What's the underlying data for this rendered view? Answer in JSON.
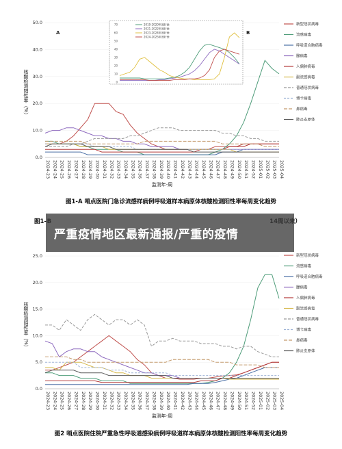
{
  "banner": {
    "text": "严重疫情地区最新通报/严重的疫情"
  },
  "legend": [
    "新型冠状病毒",
    "流感病毒",
    "呼吸道合胞病毒",
    "腺病毒",
    "人偏肺病毒",
    "副流感病毒",
    "普通冠状病毒",
    "博卡病毒",
    "鼻病毒",
    "肺炎支原体"
  ],
  "colors": [
    "#c0504d",
    "#4f9d7a",
    "#4a6fa5",
    "#8e6bbf",
    "#b33b3b",
    "#d6b84a",
    "#999999",
    "#9fb4d6",
    "#c49a6c",
    "#5a5a5a"
  ],
  "chart_data": [
    {
      "type": "line",
      "caption": "图1-A 哨点医院门急诊流感样病例呼吸道样本病原体核酸检测阳性率每周变化趋势",
      "panel_labels": [
        "A",
        "B"
      ],
      "ylabel": "核酸检测阳性率（%）",
      "xlabel": "监测年-周",
      "ylim": [
        0,
        50
      ],
      "yticks": [
        0,
        10,
        20,
        30,
        40,
        50
      ],
      "x": [
        "2024-23",
        "2024-24",
        "2024-25",
        "2024-26",
        "2024-27",
        "2024-28",
        "2024-29",
        "2024-30",
        "2024-31",
        "2024-32",
        "2024-33",
        "2024-34",
        "2024-35",
        "2024-36",
        "2024-37",
        "2024-38",
        "2024-39",
        "2024-40",
        "2024-41",
        "2024-42",
        "2024-43",
        "2024-44",
        "2024-45",
        "2024-46",
        "2024-47",
        "2024-48",
        "2024-49",
        "2024-50",
        "2024-51",
        "2024-52",
        "2025-01",
        "2025-02",
        "2025-03",
        "2025-04"
      ],
      "series": [
        {
          "name": "新型冠状病毒",
          "values": [
            5,
            5,
            5,
            6,
            8,
            11,
            14,
            20,
            20,
            20,
            17,
            16,
            12,
            9,
            7,
            5,
            4,
            3,
            3,
            3,
            3,
            3,
            3,
            3,
            4,
            4,
            4,
            4,
            5,
            5,
            5,
            5,
            5,
            5
          ]
        },
        {
          "name": "流感病毒",
          "values": [
            6,
            6,
            5,
            5,
            5,
            4,
            4,
            3,
            3,
            3,
            3,
            2,
            2,
            2,
            1,
            1,
            1,
            1,
            1,
            1,
            1,
            1,
            1,
            1,
            2,
            3,
            5,
            8,
            13,
            20,
            28,
            36,
            33,
            31
          ]
        },
        {
          "name": "呼吸道合胞病毒",
          "values": [
            2,
            2,
            2,
            2,
            2,
            2,
            1,
            1,
            1,
            1,
            1,
            1,
            1,
            1,
            1,
            1,
            1,
            1,
            1,
            1,
            1,
            1,
            1,
            1,
            1,
            2,
            2,
            2,
            3,
            3,
            3,
            3,
            3,
            3
          ]
        },
        {
          "name": "腺病毒",
          "values": [
            9,
            10,
            10,
            11,
            11,
            10,
            9,
            8,
            8,
            7,
            7,
            6,
            6,
            5,
            5,
            4,
            4,
            4,
            4,
            3,
            3,
            3,
            3,
            3,
            3,
            3,
            3,
            3,
            3,
            3,
            3,
            3,
            3,
            3
          ]
        },
        {
          "name": "人偏肺病毒",
          "values": [
            3,
            3,
            3,
            3,
            3,
            3,
            3,
            3,
            2,
            2,
            2,
            2,
            2,
            2,
            2,
            2,
            2,
            2,
            2,
            2,
            2,
            2,
            3,
            3,
            3,
            3,
            4,
            4,
            4,
            5,
            5,
            5,
            5,
            5
          ]
        },
        {
          "name": "副流感病毒",
          "values": [
            5,
            5,
            5,
            5,
            5,
            4,
            4,
            4,
            4,
            3,
            3,
            3,
            3,
            3,
            3,
            3,
            3,
            3,
            3,
            3,
            3,
            3,
            3,
            3,
            3,
            3,
            3,
            2,
            2,
            2,
            2,
            2,
            2,
            2
          ]
        },
        {
          "name": "普通冠状病毒",
          "values": [
            4,
            4,
            4,
            4,
            5,
            5,
            6,
            7,
            7,
            7,
            7,
            7,
            8,
            8,
            9,
            10,
            11,
            11,
            11,
            10,
            10,
            10,
            10,
            10,
            10,
            9,
            9,
            8,
            8,
            7,
            7,
            6,
            6,
            6
          ]
        },
        {
          "name": "博卡病毒",
          "values": [
            5,
            5,
            5,
            5,
            5,
            5,
            5,
            4,
            4,
            4,
            4,
            4,
            4,
            3,
            3,
            3,
            3,
            3,
            3,
            3,
            3,
            3,
            3,
            3,
            3,
            3,
            3,
            3,
            3,
            3,
            3,
            3,
            3,
            3
          ]
        },
        {
          "name": "鼻病毒",
          "values": [
            6,
            6,
            6,
            6,
            6,
            6,
            5,
            5,
            5,
            5,
            5,
            5,
            5,
            5,
            6,
            6,
            6,
            6,
            6,
            6,
            6,
            6,
            6,
            6,
            6,
            5,
            5,
            5,
            5,
            5,
            5,
            4,
            4,
            4
          ]
        },
        {
          "name": "肺炎支原体",
          "values": [
            4,
            5,
            5,
            5,
            5,
            5,
            4,
            4,
            4,
            4,
            3,
            3,
            3,
            3,
            3,
            3,
            3,
            3,
            3,
            3,
            3,
            2,
            2,
            2,
            2,
            2,
            2,
            2,
            2,
            2,
            2,
            2,
            2,
            2
          ]
        }
      ],
      "inset": {
        "type": "line",
        "ylim": [
          0,
          70
        ],
        "yticks": [
          0,
          10,
          20,
          30,
          40,
          50,
          60,
          70
        ],
        "series": [
          {
            "name": "2019-2020年流行季",
            "color": "#4f9d7a",
            "values": [
              5,
              5,
              5,
              5,
              5,
              4,
              4,
              4,
              4,
              4,
              5,
              6,
              8,
              12,
              18,
              28,
              38,
              45,
              46,
              44,
              42,
              40,
              36,
              30,
              22
            ]
          },
          {
            "name": "2021-2022年流行季",
            "color": "#8e6bbf",
            "values": [
              2,
              2,
              2,
              2,
              2,
              2,
              2,
              2,
              3,
              3,
              4,
              5,
              6,
              8,
              10,
              14,
              20,
              28,
              36,
              40,
              38,
              34,
              30,
              26,
              22
            ]
          },
          {
            "name": "2023-2024年流行季",
            "color": "#e0c040",
            "values": [
              8,
              10,
              12,
              18,
              28,
              30,
              25,
              20,
              15,
              12,
              8,
              6,
              5,
              4,
              4,
              3,
              3,
              3,
              3,
              4,
              10,
              30,
              55,
              60,
              54
            ]
          },
          {
            "name": "2024-2025年流行季",
            "color": "#c0504d",
            "values": [
              3,
              3,
              3,
              3,
              3,
              3,
              2,
              2,
              2,
              2,
              2,
              3,
              3,
              3,
              4,
              4,
              5,
              8,
              15,
              30,
              38,
              40,
              38,
              36,
              34
            ]
          }
        ]
      }
    },
    {
      "type": "line",
      "caption": "图1-B",
      "caption_tail": "14周以来）",
      "caption_prefix": "图1–B",
      "series": []
    },
    {
      "type": "line",
      "caption": "图2 哨点医院住院严重急性呼吸道感染病例呼吸道样本病原体核酸检测阳性率每周变化趋势",
      "ylabel": "核酸检测阳性率（%）",
      "xlabel": "监测年-周",
      "ylim": [
        0,
        25
      ],
      "yticks": [
        0,
        5,
        10,
        15,
        20,
        25
      ],
      "x": [
        "2024-23",
        "2024-24",
        "2024-25",
        "2024-26",
        "2024-27",
        "2024-28",
        "2024-29",
        "2024-30",
        "2024-31",
        "2024-32",
        "2024-33",
        "2024-34",
        "2024-35",
        "2024-36",
        "2024-37",
        "2024-38",
        "2024-39",
        "2024-40",
        "2024-41",
        "2024-42",
        "2024-43",
        "2024-44",
        "2024-45",
        "2024-46",
        "2024-47",
        "2024-48",
        "2024-49",
        "2024-50",
        "2024-51",
        "2024-52",
        "2025-01",
        "2025-02",
        "2025-03",
        "2025-04"
      ],
      "series": [
        {
          "name": "新型冠状病毒",
          "values": [
            3.5,
            3.5,
            4,
            4.5,
            5,
            6,
            7,
            8,
            9,
            10,
            9,
            8,
            7,
            5.5,
            4.5,
            3,
            2.5,
            2,
            2,
            1.8,
            1.8,
            1.8,
            2,
            2,
            2.2,
            2.4,
            2.5,
            2.6,
            3,
            3.5,
            4,
            4.5,
            5,
            5
          ]
        },
        {
          "name": "流感病毒",
          "values": [
            3,
            3,
            2.5,
            2.5,
            2.5,
            2,
            2,
            2,
            1.5,
            1.5,
            1.5,
            1.5,
            1,
            1,
            1,
            1,
            1,
            1,
            1,
            1,
            1,
            1,
            1,
            1.2,
            1.5,
            2,
            3,
            5,
            8,
            13,
            19,
            21.5,
            21.5,
            17
          ]
        },
        {
          "name": "呼吸道合胞病毒",
          "values": [
            0.8,
            0.8,
            0.8,
            0.8,
            0.8,
            0.8,
            0.8,
            0.8,
            0.8,
            0.8,
            0.8,
            0.8,
            0.8,
            0.8,
            0.8,
            0.8,
            0.8,
            0.8,
            0.8,
            0.8,
            0.8,
            1,
            1,
            1,
            1.2,
            1.5,
            1.8,
            2,
            2.5,
            3,
            3.5,
            4,
            4,
            4
          ]
        },
        {
          "name": "腺病毒",
          "values": [
            9,
            8.5,
            6,
            7,
            7.5,
            7.5,
            7,
            7,
            6,
            5.5,
            5,
            4.5,
            4,
            3.5,
            3,
            3,
            2.5,
            2.5,
            2.5,
            2,
            2,
            2,
            2,
            2,
            2,
            2,
            2,
            2,
            2,
            2,
            2,
            2,
            2,
            2
          ]
        },
        {
          "name": "人偏肺病毒",
          "values": [
            1.5,
            1.5,
            1.5,
            1.5,
            1.5,
            1.5,
            1.5,
            1.5,
            1.2,
            1.2,
            1.2,
            1.2,
            1.2,
            1.2,
            1.2,
            1.2,
            1.2,
            1.2,
            1.2,
            1.2,
            1.2,
            1.2,
            1.5,
            1.5,
            1.5,
            2,
            2,
            2.5,
            3,
            3.5,
            4,
            4.5,
            5,
            5
          ]
        },
        {
          "name": "副流感病毒",
          "values": [
            4,
            4,
            3.5,
            5,
            5,
            5,
            4.5,
            4,
            4,
            3.5,
            3,
            3,
            2.5,
            2.5,
            2.5,
            2,
            2,
            2,
            2,
            2,
            2,
            2,
            2,
            2,
            2,
            2,
            1.8,
            1.8,
            1.8,
            1.8,
            1.8,
            1.8,
            1.8,
            1.8
          ]
        },
        {
          "name": "普通冠状病毒",
          "values": [
            12,
            12,
            11,
            13,
            12,
            11,
            13,
            14,
            13,
            12,
            13,
            13,
            12,
            13,
            12,
            8,
            9,
            9,
            9.5,
            9,
            9,
            9,
            8.5,
            8.5,
            8.5,
            8,
            8,
            7.5,
            8,
            8,
            7,
            6.5,
            6,
            6
          ]
        },
        {
          "name": "博卡病毒",
          "values": [
            5,
            5,
            5,
            5,
            5,
            4,
            4,
            4,
            4,
            3.5,
            3.5,
            3.5,
            3,
            3,
            3,
            3,
            3,
            3,
            2.5,
            2.5,
            2.5,
            2.5,
            2.5,
            2.5,
            2.5,
            2.5,
            2.5,
            2.5,
            2.5,
            2.5,
            2.5,
            2.5,
            2.5,
            2.5
          ]
        },
        {
          "name": "鼻病毒",
          "values": [
            6,
            6,
            6,
            6,
            5.5,
            5.5,
            5,
            5,
            5,
            5,
            5,
            5,
            5,
            5,
            5,
            5,
            5,
            5,
            5.5,
            5.5,
            5.5,
            5.5,
            5.5,
            5.5,
            5,
            5,
            5,
            4.5,
            4.5,
            4.5,
            4.5,
            4,
            4,
            4
          ]
        },
        {
          "name": "肺炎支原体",
          "values": [
            3,
            3.5,
            3.5,
            3.5,
            3.5,
            3,
            3,
            3,
            3,
            2.5,
            2.5,
            2.5,
            2.5,
            2.5,
            2.5,
            2.5,
            2.5,
            2.5,
            2,
            2,
            2,
            2,
            2,
            2,
            2,
            2,
            2,
            2,
            2,
            2,
            2,
            2,
            2,
            2
          ]
        }
      ]
    }
  ]
}
